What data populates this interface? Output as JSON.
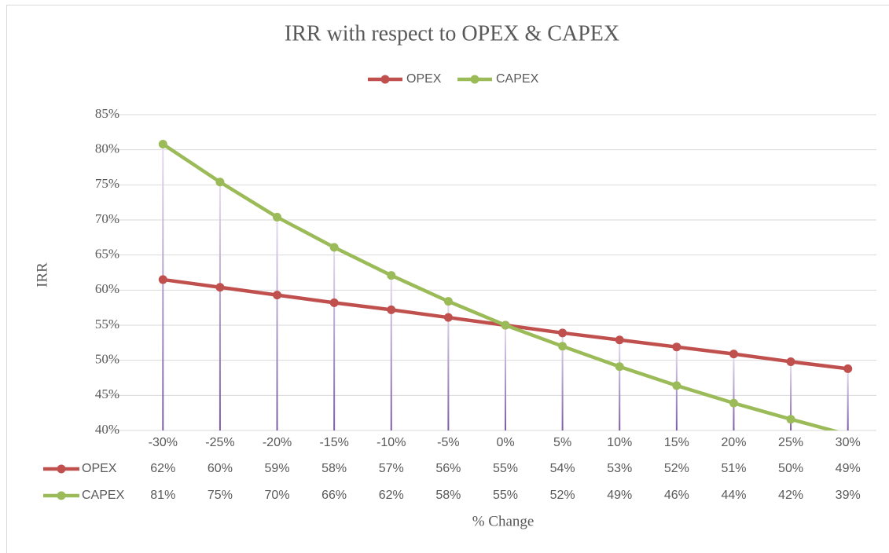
{
  "chart_data": {
    "type": "line",
    "title": "IRR with respect to OPEX & CAPEX",
    "x_label": "% Change",
    "y_label": "IRR",
    "categories": [
      "-30%",
      "-25%",
      "-20%",
      "-15%",
      "-10%",
      "-5%",
      "0%",
      "5%",
      "10%",
      "15%",
      "20%",
      "25%",
      "30%"
    ],
    "series": [
      {
        "name": "OPEX",
        "color": "#c0504d",
        "values": [
          61.5,
          60.4,
          59.3,
          58.2,
          57.2,
          56.1,
          55.0,
          53.9,
          52.9,
          51.9,
          50.9,
          49.8,
          48.8
        ],
        "value_labels": [
          "62%",
          "60%",
          "59%",
          "58%",
          "57%",
          "56%",
          "55%",
          "54%",
          "53%",
          "52%",
          "51%",
          "50%",
          "49%"
        ]
      },
      {
        "name": "CAPEX",
        "color": "#9bbb59",
        "values": [
          80.8,
          75.4,
          70.4,
          66.1,
          62.1,
          58.4,
          55.0,
          52.0,
          49.1,
          46.4,
          43.9,
          41.6,
          39.4
        ],
        "value_labels": [
          "81%",
          "75%",
          "70%",
          "66%",
          "62%",
          "58%",
          "55%",
          "52%",
          "49%",
          "46%",
          "44%",
          "42%",
          "39%"
        ]
      }
    ],
    "ylim": [
      40,
      85
    ],
    "yticks": [
      {
        "value": 40,
        "label": "40%"
      },
      {
        "value": 45,
        "label": "45%"
      },
      {
        "value": 50,
        "label": "50%"
      },
      {
        "value": 55,
        "label": "55%"
      },
      {
        "value": 60,
        "label": "60%"
      },
      {
        "value": 65,
        "label": "65%"
      },
      {
        "value": 70,
        "label": "70%"
      },
      {
        "value": 75,
        "label": "75%"
      },
      {
        "value": 80,
        "label": "80%"
      },
      {
        "value": 85,
        "label": "85%"
      }
    ],
    "grid": true,
    "legend": "top",
    "drop_lines": true
  }
}
